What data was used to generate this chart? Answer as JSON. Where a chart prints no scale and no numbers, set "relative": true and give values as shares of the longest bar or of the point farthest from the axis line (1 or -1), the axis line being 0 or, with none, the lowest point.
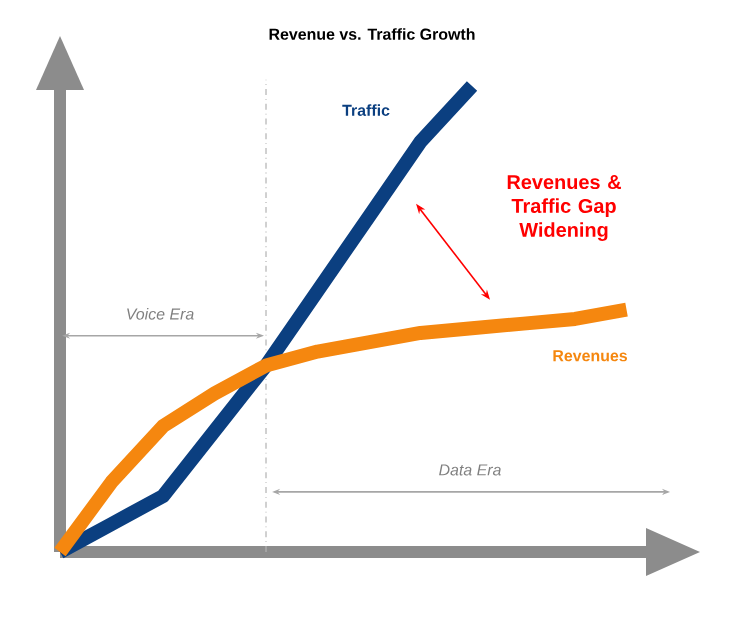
{
  "chart_data": {
    "type": "line",
    "title": "Revenue vs. Traffic Growth",
    "relative": true,
    "categories": [
      null,
      null,
      null,
      null,
      null,
      null,
      null,
      null,
      null,
      null,
      null,
      null
    ],
    "series": [
      {
        "name": "Traffic",
        "color": "#0b3f80",
        "values": [
          0,
          0.06,
          0.12,
          0.26,
          0.4,
          0.56,
          0.72,
          0.88,
          1,
          null,
          null,
          null
        ]
      },
      {
        "name": "Revenues",
        "color": "#f5870f",
        "values": [
          0,
          0.15,
          0.27,
          0.34,
          0.4,
          0.43,
          0.45,
          0.47,
          0.48,
          0.49,
          0.5,
          0.52
        ]
      }
    ],
    "annotations": [
      "Revenues & Traffic Gap Widening",
      "Voice Era",
      "Data Era"
    ]
  }
}
